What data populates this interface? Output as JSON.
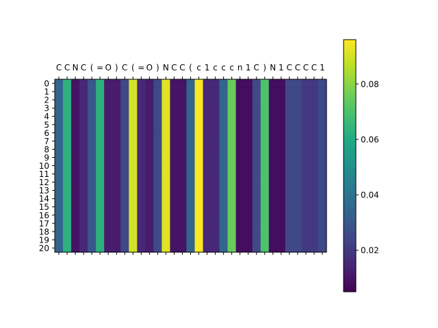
{
  "chart_data": {
    "type": "heatmap",
    "colormap": "viridis",
    "x_tick_labels": [
      "C",
      "C",
      "N",
      "C",
      "(",
      "=",
      "O",
      ")",
      "C",
      "(",
      "=",
      "O",
      ")",
      "N",
      "C",
      "C",
      "(",
      "c",
      "1",
      "c",
      "c",
      "c",
      "n",
      "1",
      "C",
      ")",
      "N",
      "1",
      "C",
      "C",
      "C",
      "C",
      "1"
    ],
    "y_tick_labels": [
      "0",
      "1",
      "2",
      "3",
      "4",
      "5",
      "6",
      "7",
      "8",
      "9",
      "10",
      "11",
      "12",
      "13",
      "14",
      "15",
      "16",
      "17",
      "18",
      "19",
      "20"
    ],
    "column_values": [
      0.035,
      0.063,
      0.01,
      0.015,
      0.03,
      0.063,
      0.012,
      0.012,
      0.025,
      0.09,
      0.015,
      0.012,
      0.025,
      0.092,
      0.01,
      0.01,
      0.035,
      0.096,
      0.015,
      0.015,
      0.035,
      0.075,
      0.008,
      0.008,
      0.025,
      0.07,
      0.008,
      0.008,
      0.025,
      0.025,
      0.02,
      0.02,
      0.025
    ],
    "rows_identical": true,
    "colorbar": {
      "range": [
        0.005,
        0.096
      ],
      "ticks": [
        0.02,
        0.04,
        0.06,
        0.08
      ],
      "tick_labels": [
        "0.02",
        "0.04",
        "0.06",
        "0.08"
      ]
    },
    "xlabel": "",
    "ylabel": "",
    "title": ""
  }
}
